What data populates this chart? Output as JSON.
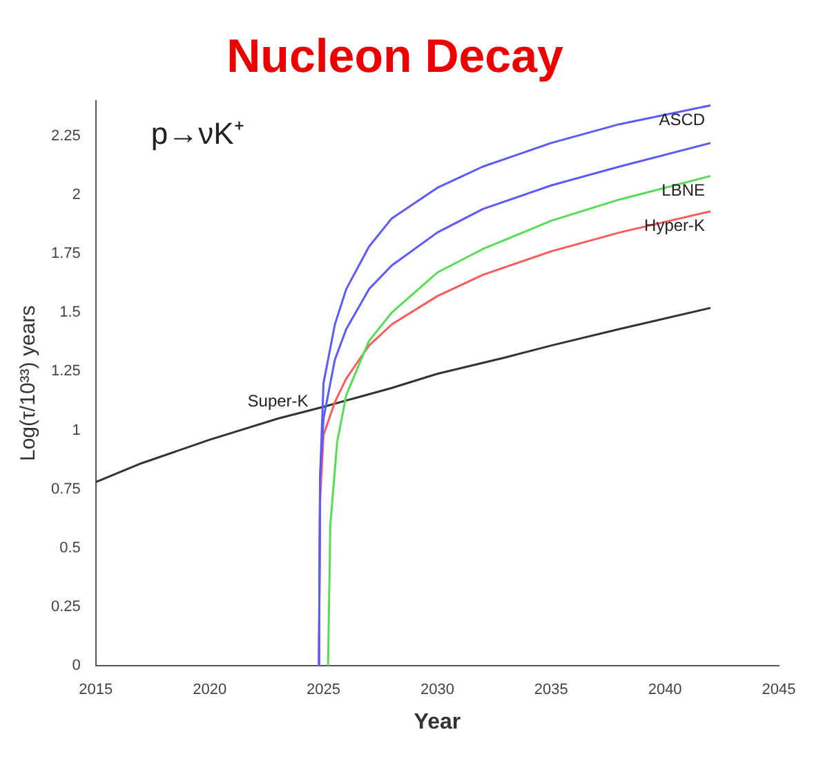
{
  "chart_data": {
    "type": "line",
    "title": "Nucleon Decay",
    "xlabel": "Year",
    "ylabel": "Log(τ/10³³) years",
    "annotations": [
      "p→νK⁺"
    ],
    "xlim": [
      2015,
      2045
    ],
    "xticks": [
      2015,
      2020,
      2025,
      2030,
      2035,
      2040,
      2045
    ],
    "ylim": [
      0,
      2.4
    ],
    "yticks": [
      0,
      0.25,
      0.5,
      0.75,
      1,
      1.25,
      1.5,
      1.75,
      2,
      2.25
    ],
    "grid": false,
    "legend": false,
    "marker": "none",
    "line_style": "solid",
    "series": [
      {
        "name": "ASCD",
        "color": "#5a5aff",
        "x": [
          2024.8,
          2024.85,
          2025,
          2025.5,
          2026,
          2027,
          2028,
          2030,
          2032,
          2035,
          2038,
          2042
        ],
        "values": [
          0,
          0.8,
          1.2,
          1.45,
          1.6,
          1.78,
          1.9,
          2.03,
          2.12,
          2.22,
          2.3,
          2.38
        ]
      },
      {
        "color": "#5a5aff",
        "x": [
          2024.8,
          2024.85,
          2025,
          2025.5,
          2026,
          2027,
          2028,
          2030,
          2032,
          2035,
          2038,
          2042
        ],
        "values": [
          0,
          0.8,
          1.05,
          1.3,
          1.43,
          1.6,
          1.7,
          1.84,
          1.94,
          2.04,
          2.12,
          2.22
        ]
      },
      {
        "name": "LBNE",
        "color": "#55dd55",
        "x": [
          2025.2,
          2025.3,
          2025.6,
          2026,
          2027,
          2028,
          2030,
          2032,
          2035,
          2038,
          2042
        ],
        "values": [
          0,
          0.6,
          0.95,
          1.15,
          1.38,
          1.5,
          1.67,
          1.77,
          1.89,
          1.98,
          2.08
        ]
      },
      {
        "name": "Hyper-K",
        "color": "#ff5a5a",
        "x": [
          2024.8,
          2024.85,
          2025,
          2025.5,
          2026,
          2027,
          2028,
          2030,
          2032,
          2035,
          2038,
          2042
        ],
        "values": [
          0,
          0.7,
          0.98,
          1.12,
          1.22,
          1.36,
          1.45,
          1.57,
          1.66,
          1.76,
          1.84,
          1.93
        ]
      },
      {
        "name": "Super-K",
        "color": "#333333",
        "x": [
          2015,
          2017,
          2020,
          2023,
          2025,
          2028,
          2030,
          2033,
          2035,
          2038,
          2042
        ],
        "values": [
          0.78,
          0.86,
          0.96,
          1.05,
          1.1,
          1.18,
          1.24,
          1.31,
          1.36,
          1.43,
          1.52
        ]
      }
    ]
  }
}
